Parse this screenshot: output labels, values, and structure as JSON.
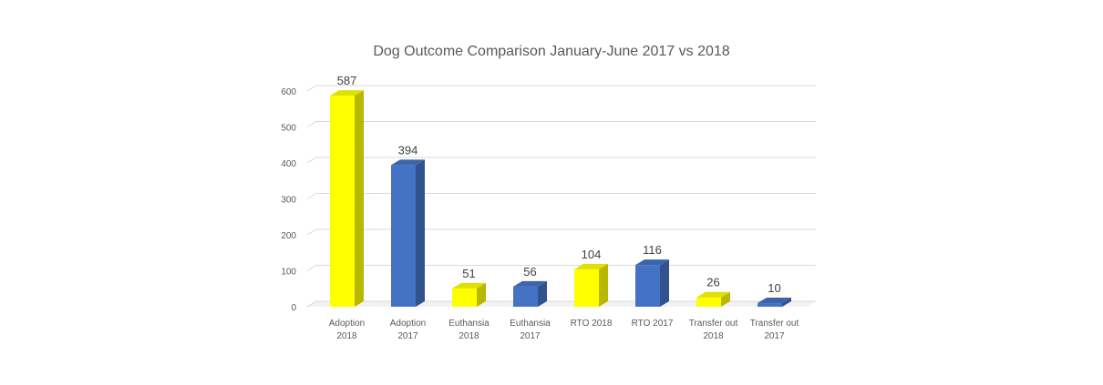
{
  "chart_data": {
    "type": "bar",
    "title": "Dog Outcome Comparison January-June 2017 vs 2018",
    "categories": [
      [
        "Adoption",
        "2018"
      ],
      [
        "Adoption",
        "2017"
      ],
      [
        "Euthansia",
        "2018"
      ],
      [
        "Euthansia",
        "2017"
      ],
      [
        "RTO 2018"
      ],
      [
        "RTO 2017"
      ],
      [
        "Transfer out",
        "2018"
      ],
      [
        "Transfer out",
        "2017"
      ]
    ],
    "values": [
      587,
      394,
      51,
      56,
      104,
      116,
      26,
      10
    ],
    "data_labels": [
      "587",
      "394",
      "51",
      "56",
      "104",
      "116",
      "26",
      "10"
    ],
    "bar_colors": [
      "#ffff00",
      "#4472c4",
      "#ffff00",
      "#4472c4",
      "#ffff00",
      "#4472c4",
      "#ffff00",
      "#4472c4"
    ],
    "ylim": [
      0,
      600
    ],
    "yticks": [
      0,
      100,
      200,
      300,
      400,
      500,
      600
    ],
    "grid": true,
    "style": "3d-column",
    "xlabel": "",
    "ylabel": ""
  }
}
